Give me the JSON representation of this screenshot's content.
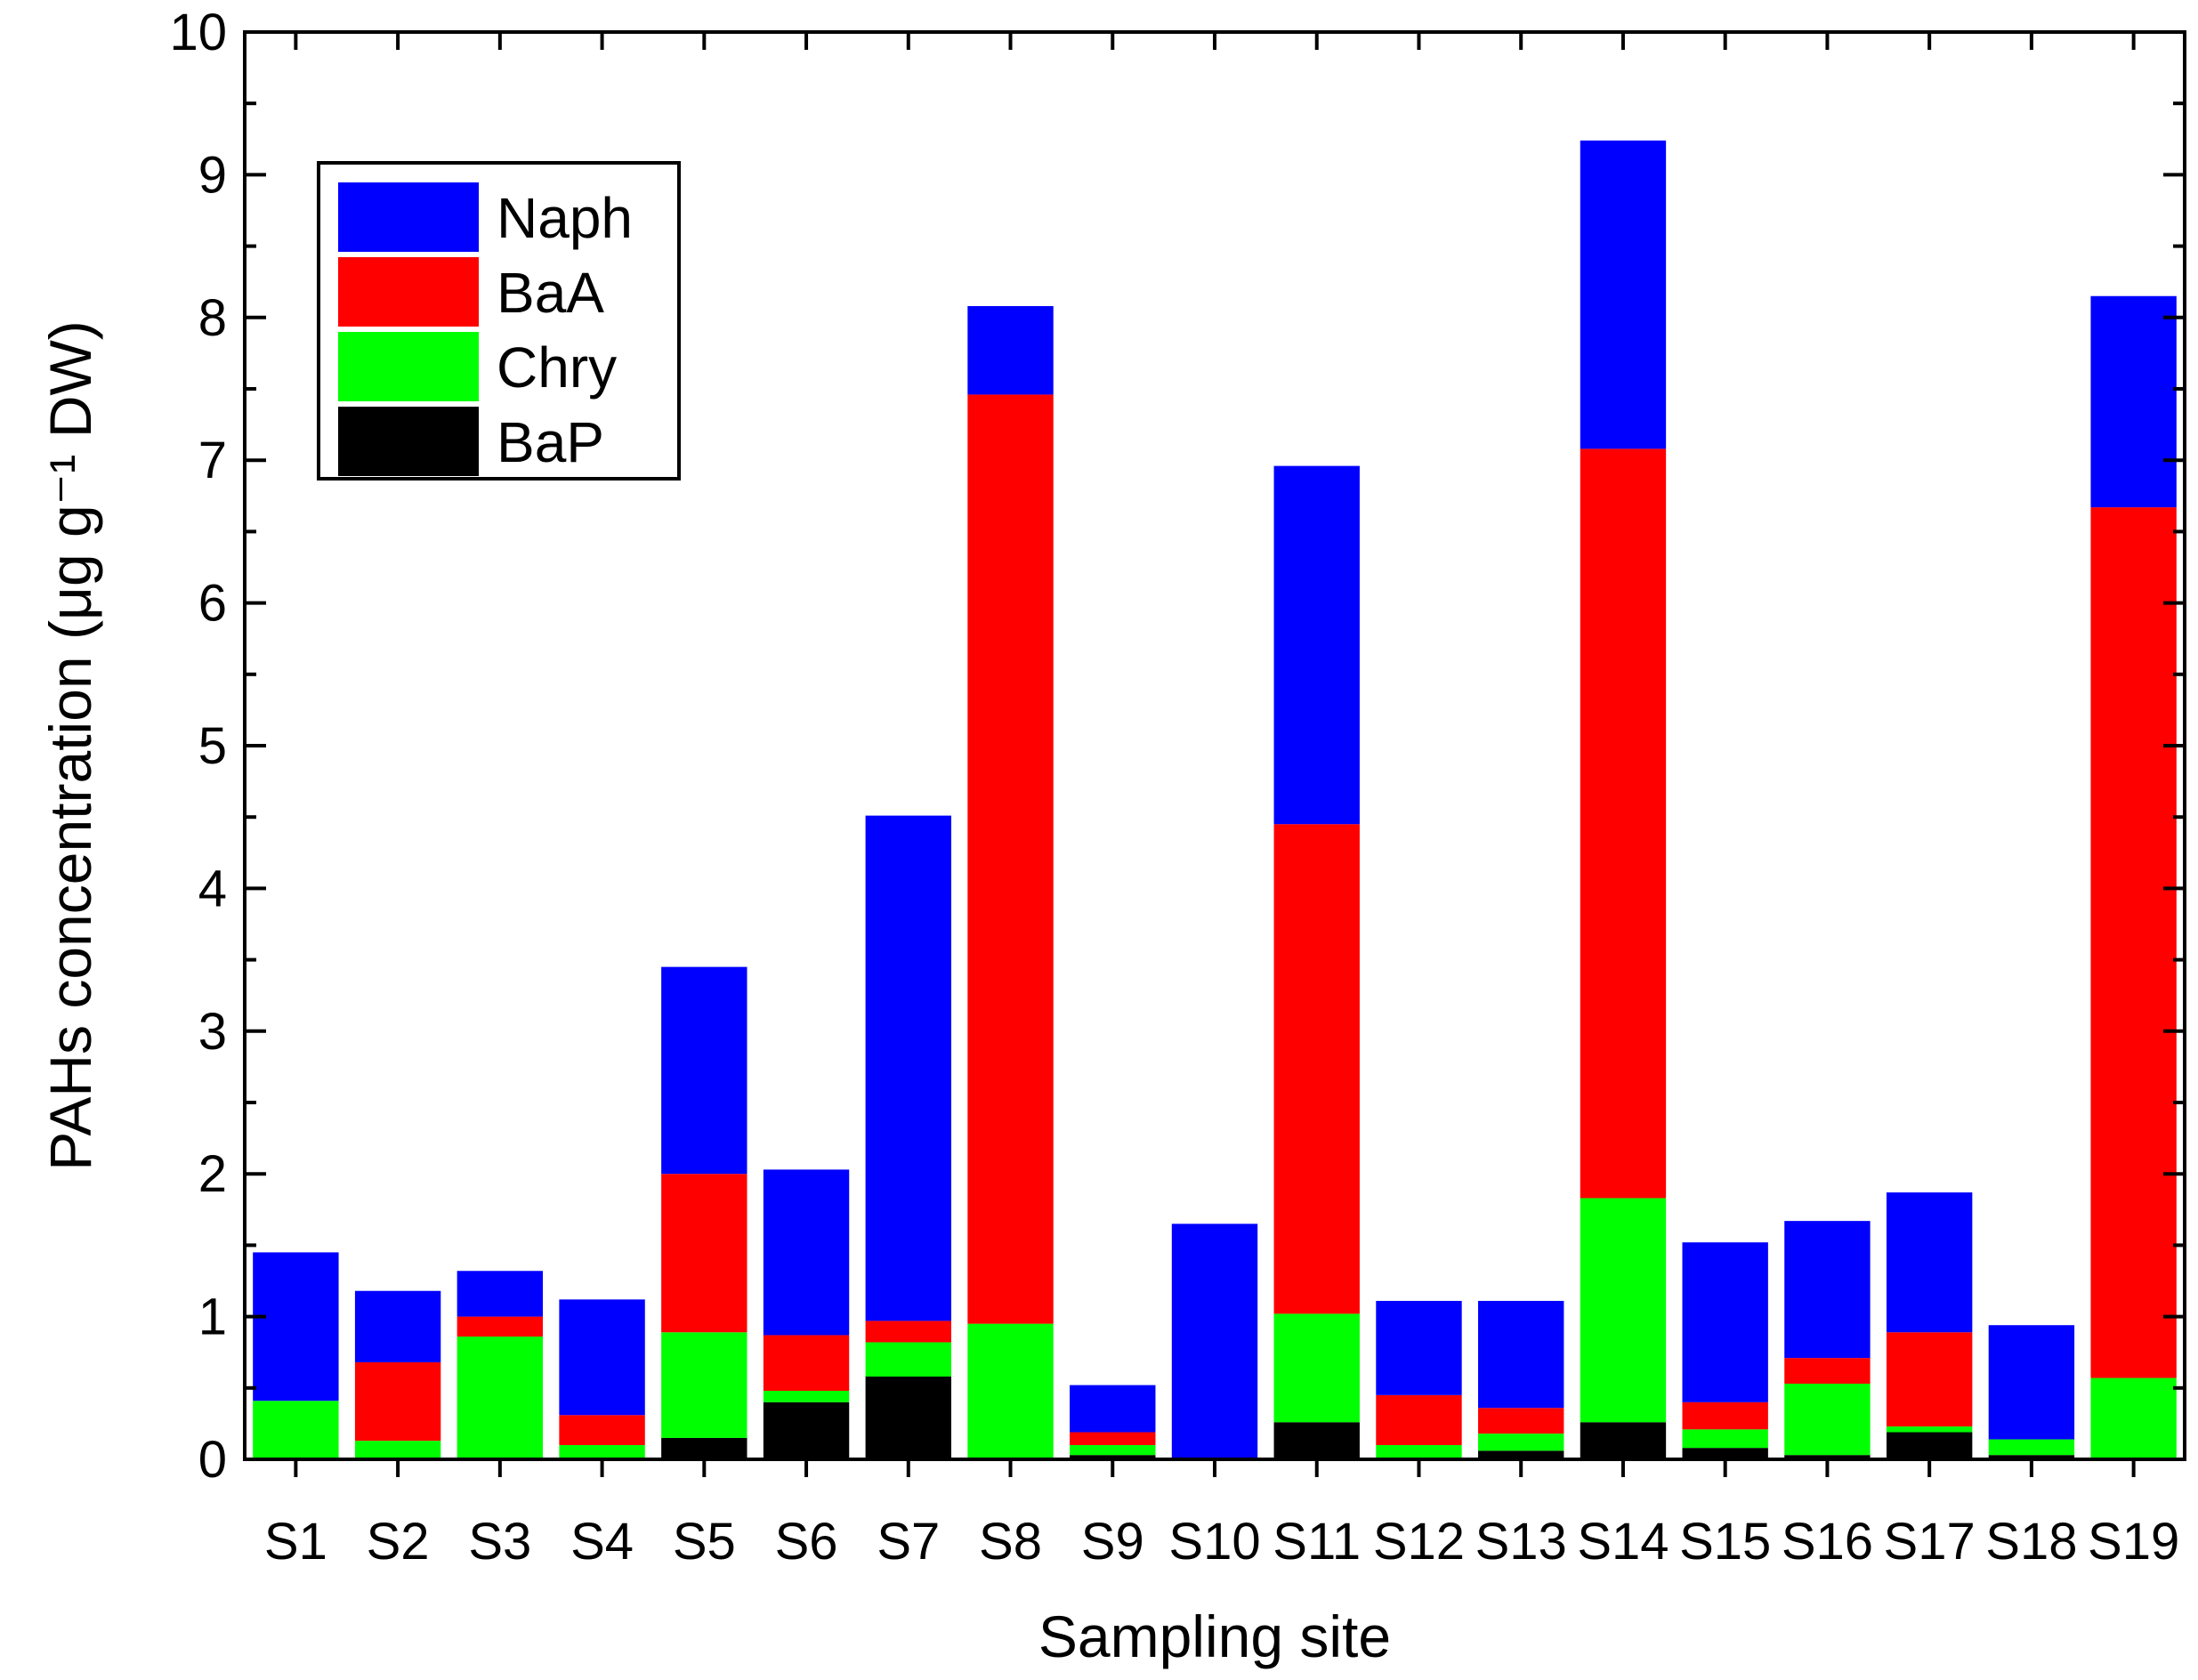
{
  "chart_data": {
    "type": "bar",
    "stacked": true,
    "xlabel": "Sampling site",
    "ylabel": "PAHs concentration (μg g⁻¹ DW)",
    "ylim": [
      0,
      10
    ],
    "yticks": [
      "0",
      "1",
      "2",
      "3",
      "4",
      "5",
      "6",
      "7",
      "8",
      "9",
      "10"
    ],
    "categories": [
      "S1",
      "S2",
      "S3",
      "S4",
      "S5",
      "S6",
      "S7",
      "S8",
      "S9",
      "S10",
      "S11",
      "S12",
      "S13",
      "S14",
      "S15",
      "S16",
      "S17",
      "S18",
      "S19"
    ],
    "series": [
      {
        "name": "BaP",
        "color": "#000000",
        "values": [
          0.0,
          0.0,
          0.0,
          0.0,
          0.15,
          0.4,
          0.58,
          0.0,
          0.03,
          0.0,
          0.26,
          0.0,
          0.06,
          0.26,
          0.08,
          0.03,
          0.19,
          0.03,
          0.0
        ]
      },
      {
        "name": "Chry",
        "color": "#00ff00",
        "values": [
          0.41,
          0.13,
          0.86,
          0.1,
          0.74,
          0.08,
          0.24,
          0.95,
          0.07,
          0.0,
          0.76,
          0.1,
          0.12,
          1.57,
          0.13,
          0.5,
          0.04,
          0.11,
          0.57
        ]
      },
      {
        "name": "BaA",
        "color": "#ff0000",
        "values": [
          0.0,
          0.55,
          0.14,
          0.21,
          1.11,
          0.39,
          0.15,
          6.51,
          0.09,
          0.0,
          3.43,
          0.35,
          0.18,
          5.25,
          0.19,
          0.18,
          0.66,
          0.0,
          6.1
        ]
      },
      {
        "name": "Naph",
        "color": "#0000ff",
        "values": [
          1.04,
          0.5,
          0.32,
          0.81,
          1.45,
          1.16,
          3.54,
          0.62,
          0.33,
          1.65,
          2.51,
          0.66,
          0.75,
          2.16,
          1.12,
          0.96,
          0.98,
          0.8,
          1.48
        ]
      }
    ],
    "legend": {
      "placement": "top-left",
      "order": [
        "Naph",
        "BaA",
        "Chry",
        "BaP"
      ]
    }
  }
}
